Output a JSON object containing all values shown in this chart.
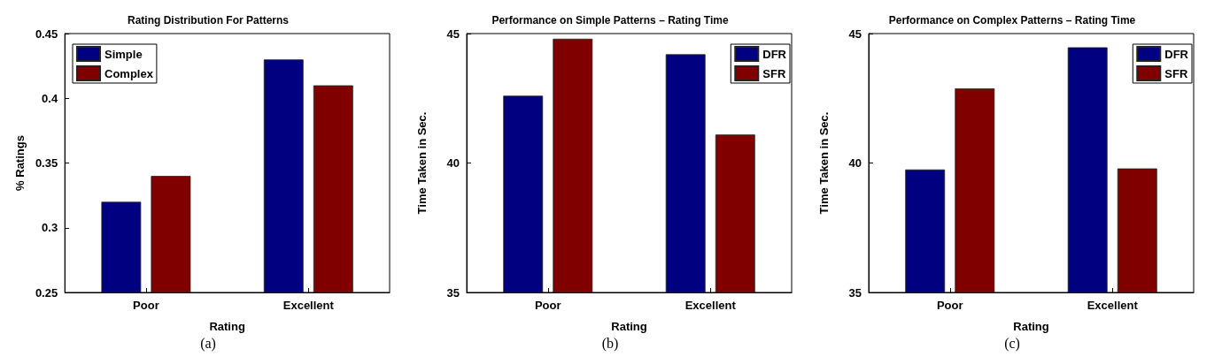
{
  "chart_data": [
    {
      "type": "bar",
      "title": "Rating Distribution For Patterns",
      "xlabel": "Rating",
      "ylabel": "% Ratings",
      "categories": [
        "Poor",
        "Excellent"
      ],
      "series": [
        {
          "name": "Simple",
          "color": "#000080",
          "values": [
            0.32,
            0.43
          ]
        },
        {
          "name": "Complex",
          "color": "#800000",
          "values": [
            0.34,
            0.41
          ]
        }
      ],
      "ylim": [
        0.25,
        0.45
      ],
      "yticks": [
        0.25,
        0.3,
        0.35,
        0.4,
        0.45
      ],
      "legend": "top left",
      "grid": false,
      "annotations": [
        "(a)"
      ]
    },
    {
      "type": "bar",
      "title": "Performance on Simple Patterns – Rating Time",
      "xlabel": "Rating",
      "ylabel": "Time Taken in Sec.",
      "categories": [
        "Poor",
        "Excellent"
      ],
      "series": [
        {
          "name": "DFR",
          "color": "#000080",
          "values": [
            42.6,
            44.2
          ]
        },
        {
          "name": "SFR",
          "color": "#800000",
          "values": [
            44.8,
            41.1
          ]
        }
      ],
      "ylim": [
        35,
        45
      ],
      "yticks": [
        35,
        40,
        45
      ],
      "legend": "top right",
      "grid": false,
      "annotations": [
        "(b)"
      ]
    },
    {
      "type": "bar",
      "title": "Performance on Complex Patterns – Rating Time",
      "xlabel": "Rating",
      "ylabel": "Time Taken in Sec.",
      "categories": [
        "Poor",
        "Excellent"
      ],
      "series": [
        {
          "name": "DFR",
          "color": "#000080",
          "values": [
            39.75,
            44.47
          ]
        },
        {
          "name": "SFR",
          "color": "#800000",
          "values": [
            42.88,
            39.79
          ]
        }
      ],
      "ylim": [
        35,
        45
      ],
      "yticks": [
        35,
        40,
        45
      ],
      "legend": "top right",
      "grid": false,
      "annotations": [
        "(c)"
      ]
    }
  ]
}
